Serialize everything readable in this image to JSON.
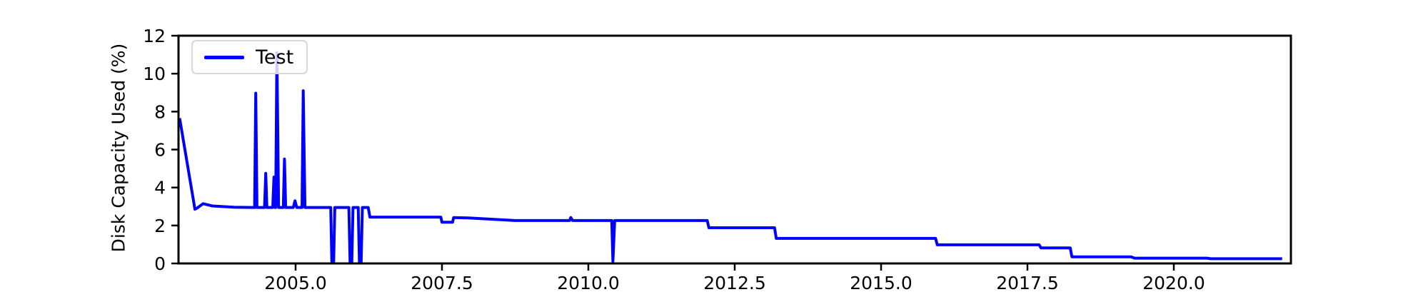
{
  "chart_data": {
    "type": "line",
    "title": "",
    "xlabel": "",
    "ylabel": "Disk Capacity Used (%)",
    "xlim": [
      2003.0,
      2022.0
    ],
    "ylim": [
      0,
      12
    ],
    "grid": false,
    "x_ticks": [
      2005.0,
      2007.5,
      2010.0,
      2012.5,
      2015.0,
      2017.5,
      2020.0
    ],
    "x_tick_labels": [
      "2005.0",
      "2007.5",
      "2010.0",
      "2012.5",
      "2015.0",
      "2017.5",
      "2020.0"
    ],
    "y_ticks": [
      0,
      2,
      4,
      6,
      8,
      10,
      12
    ],
    "y_tick_labels": [
      "0",
      "2",
      "4",
      "6",
      "8",
      "10",
      "12"
    ],
    "legend": {
      "position": "upper-left",
      "entries": [
        {
          "label": "Test",
          "color": "#0000ff"
        }
      ]
    },
    "series": [
      {
        "name": "Test",
        "color": "#0000ff",
        "points": [
          [
            2003.02,
            7.65
          ],
          [
            2003.28,
            2.86
          ],
          [
            2003.32,
            2.92
          ],
          [
            2003.42,
            3.15
          ],
          [
            2003.58,
            3.03
          ],
          [
            2003.95,
            2.96
          ],
          [
            2004.3,
            2.95
          ],
          [
            2004.32,
            8.97
          ],
          [
            2004.34,
            2.95
          ],
          [
            2004.47,
            2.95
          ],
          [
            2004.49,
            4.75
          ],
          [
            2004.51,
            2.95
          ],
          [
            2004.61,
            2.95
          ],
          [
            2004.63,
            4.55
          ],
          [
            2004.65,
            2.95
          ],
          [
            2004.66,
            2.95
          ],
          [
            2004.68,
            11.1
          ],
          [
            2004.71,
            2.95
          ],
          [
            2004.79,
            2.95
          ],
          [
            2004.81,
            5.5
          ],
          [
            2004.83,
            2.95
          ],
          [
            2004.96,
            2.95
          ],
          [
            2004.99,
            3.3
          ],
          [
            2005.02,
            2.95
          ],
          [
            2005.11,
            2.95
          ],
          [
            2005.13,
            9.1
          ],
          [
            2005.16,
            2.95
          ],
          [
            2005.6,
            2.95
          ],
          [
            2005.62,
            0.03
          ],
          [
            2005.65,
            0.03
          ],
          [
            2005.67,
            2.95
          ],
          [
            2005.91,
            2.95
          ],
          [
            2005.93,
            0.03
          ],
          [
            2005.96,
            0.03
          ],
          [
            2005.98,
            2.95
          ],
          [
            2006.07,
            2.95
          ],
          [
            2006.09,
            0.03
          ],
          [
            2006.12,
            0.03
          ],
          [
            2006.14,
            2.95
          ],
          [
            2006.24,
            2.95
          ],
          [
            2006.27,
            2.44
          ],
          [
            2007.48,
            2.44
          ],
          [
            2007.5,
            2.17
          ],
          [
            2007.68,
            2.17
          ],
          [
            2007.7,
            2.42
          ],
          [
            2007.95,
            2.4
          ],
          [
            2008.75,
            2.26
          ],
          [
            2009.68,
            2.26
          ],
          [
            2009.7,
            2.42
          ],
          [
            2009.73,
            2.26
          ],
          [
            2010.4,
            2.26
          ],
          [
            2010.42,
            0.1
          ],
          [
            2010.45,
            2.26
          ],
          [
            2012.03,
            2.26
          ],
          [
            2012.06,
            1.88
          ],
          [
            2013.18,
            1.88
          ],
          [
            2013.21,
            1.32
          ],
          [
            2015.93,
            1.32
          ],
          [
            2015.96,
            0.98
          ],
          [
            2017.7,
            0.98
          ],
          [
            2017.73,
            0.82
          ],
          [
            2018.23,
            0.82
          ],
          [
            2018.26,
            0.35
          ],
          [
            2019.27,
            0.35
          ],
          [
            2019.33,
            0.28
          ],
          [
            2020.57,
            0.28
          ],
          [
            2020.63,
            0.25
          ],
          [
            2021.85,
            0.25
          ]
        ]
      }
    ]
  },
  "colors": {
    "line": "#0000ff",
    "axis": "#000000",
    "background": "#ffffff"
  }
}
